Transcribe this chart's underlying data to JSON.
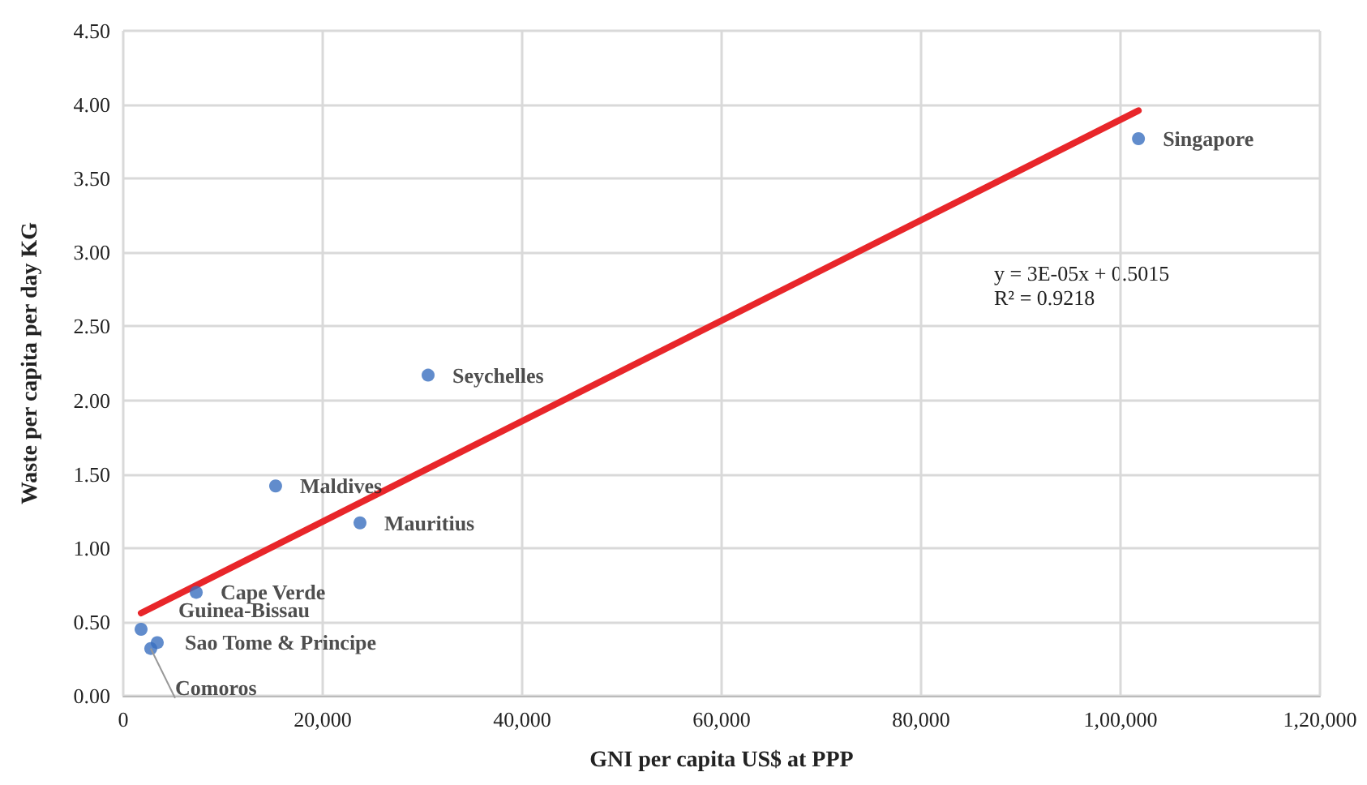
{
  "chart_data": {
    "type": "scatter",
    "xlabel": "GNI per capita US$ at PPP",
    "ylabel": "Waste per capita per day KG",
    "series": [
      {
        "color": "#3a6fbf",
        "x": [
          101800,
          30570,
          15280,
          23740,
          7320,
          1790,
          3410,
          2760
        ],
        "values": [
          3.77,
          2.17,
          1.42,
          1.17,
          0.7,
          0.45,
          0.36,
          0.32
        ]
      },
      {
        "type": "line",
        "color": "#e8262a",
        "x": [
          1790,
          101800
        ],
        "values": [
          0.56,
          3.96
        ],
        "marker": "none"
      }
    ],
    "annotations": [
      {
        "text": "Singapore",
        "x": 101800,
        "y": 3.77
      },
      {
        "text": "Seychelles",
        "x": 30570,
        "y": 2.17
      },
      {
        "text": "Maldives",
        "x": 15280,
        "y": 1.42
      },
      {
        "text": "Mauritius",
        "x": 23740,
        "y": 1.17
      },
      {
        "text": "Cape Verde",
        "x": 7320,
        "y": 0.7
      },
      {
        "text": "Guinea-Bissau",
        "x": 1790,
        "y": 0.45
      },
      {
        "text": "Sao Tome & Principe",
        "x": 3410,
        "y": 0.36
      },
      {
        "text": "Comoros",
        "x": 2760,
        "y": 0.32
      },
      "y = 3E-05x + 0.5015",
      "R² = 0.9218"
    ],
    "xlim": [
      0,
      120000
    ],
    "xticks": [
      {
        "value": 0,
        "label": "0"
      },
      {
        "value": 20000,
        "label": "20,000"
      },
      {
        "value": 40000,
        "label": "40,000"
      },
      {
        "value": 60000,
        "label": "60,000"
      },
      {
        "value": 80000,
        "label": "80,000"
      },
      {
        "value": 100000,
        "label": "1,00,000"
      },
      {
        "value": 120000,
        "label": "1,20,000"
      }
    ],
    "ylim": [
      0,
      4.5
    ],
    "yticks": [
      {
        "value": 0,
        "label": "0.00"
      },
      {
        "value": 0.5,
        "label": "0.50"
      },
      {
        "value": 1,
        "label": "1.00"
      },
      {
        "value": 1.5,
        "label": "1.50"
      },
      {
        "value": 2,
        "label": "2.00"
      },
      {
        "value": 2.5,
        "label": "2.50"
      },
      {
        "value": 3,
        "label": "3.00"
      },
      {
        "value": 3.5,
        "label": "3.50"
      },
      {
        "value": 4,
        "label": "4.00"
      },
      {
        "value": 4.5,
        "label": "4.50"
      }
    ],
    "grid": true,
    "marker": "circle"
  }
}
